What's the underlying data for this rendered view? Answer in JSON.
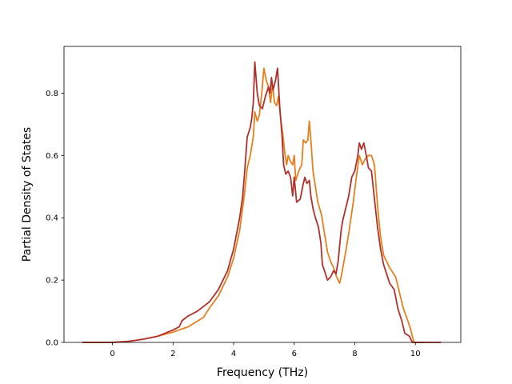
{
  "chart_data": {
    "type": "line",
    "xlabel": "Frequency (THz)",
    "ylabel": "Partial Density of States",
    "xlim": [
      -1.6,
      11.5
    ],
    "ylim": [
      0,
      0.95
    ],
    "xticks": [
      0,
      2,
      4,
      6,
      8,
      10
    ],
    "yticks": [
      0.0,
      0.2,
      0.4,
      0.6,
      0.8
    ],
    "x_tick_labels": [
      "0",
      "2",
      "4",
      "6",
      "8",
      "10"
    ],
    "y_tick_labels": [
      "0.0",
      "0.2",
      "0.4",
      "0.6",
      "0.8"
    ],
    "grid": false,
    "series": [
      {
        "color": "#e6801f",
        "points": [
          [
            -1.0,
            0
          ],
          [
            0.0,
            0
          ],
          [
            0.5,
            0.003
          ],
          [
            1.0,
            0.01
          ],
          [
            1.5,
            0.02
          ],
          [
            2.0,
            0.033
          ],
          [
            2.5,
            0.05
          ],
          [
            3.0,
            0.08
          ],
          [
            3.2,
            0.11
          ],
          [
            3.5,
            0.15
          ],
          [
            3.8,
            0.21
          ],
          [
            4.0,
            0.27
          ],
          [
            4.2,
            0.36
          ],
          [
            4.35,
            0.47
          ],
          [
            4.45,
            0.56
          ],
          [
            4.55,
            0.6
          ],
          [
            4.65,
            0.66
          ],
          [
            4.7,
            0.74
          ],
          [
            4.78,
            0.71
          ],
          [
            4.85,
            0.73
          ],
          [
            4.93,
            0.8
          ],
          [
            5.0,
            0.88
          ],
          [
            5.08,
            0.84
          ],
          [
            5.15,
            0.82
          ],
          [
            5.22,
            0.77
          ],
          [
            5.28,
            0.83
          ],
          [
            5.35,
            0.77
          ],
          [
            5.42,
            0.76
          ],
          [
            5.48,
            0.79
          ],
          [
            5.55,
            0.72
          ],
          [
            5.62,
            0.67
          ],
          [
            5.7,
            0.6
          ],
          [
            5.75,
            0.57
          ],
          [
            5.8,
            0.6
          ],
          [
            5.88,
            0.58
          ],
          [
            5.95,
            0.57
          ],
          [
            6.0,
            0.6
          ],
          [
            6.05,
            0.52
          ],
          [
            6.15,
            0.55
          ],
          [
            6.25,
            0.57
          ],
          [
            6.3,
            0.65
          ],
          [
            6.38,
            0.64
          ],
          [
            6.45,
            0.65
          ],
          [
            6.5,
            0.71
          ],
          [
            6.55,
            0.65
          ],
          [
            6.62,
            0.55
          ],
          [
            6.7,
            0.5
          ],
          [
            6.78,
            0.45
          ],
          [
            6.9,
            0.41
          ],
          [
            7.0,
            0.35
          ],
          [
            7.1,
            0.29
          ],
          [
            7.2,
            0.26
          ],
          [
            7.3,
            0.24
          ],
          [
            7.4,
            0.21
          ],
          [
            7.5,
            0.19
          ],
          [
            7.55,
            0.21
          ],
          [
            7.7,
            0.29
          ],
          [
            7.8,
            0.35
          ],
          [
            7.95,
            0.45
          ],
          [
            8.05,
            0.53
          ],
          [
            8.15,
            0.6
          ],
          [
            8.25,
            0.57
          ],
          [
            8.35,
            0.59
          ],
          [
            8.45,
            0.6
          ],
          [
            8.55,
            0.6
          ],
          [
            8.65,
            0.57
          ],
          [
            8.75,
            0.44
          ],
          [
            8.85,
            0.34
          ],
          [
            8.95,
            0.28
          ],
          [
            9.05,
            0.26
          ],
          [
            9.15,
            0.24
          ],
          [
            9.35,
            0.21
          ],
          [
            9.5,
            0.15
          ],
          [
            9.6,
            0.11
          ],
          [
            9.75,
            0.07
          ],
          [
            9.85,
            0.04
          ],
          [
            9.95,
            0
          ],
          [
            10.3,
            0
          ]
        ]
      },
      {
        "color": "#b2302b",
        "points": [
          [
            -1.0,
            0
          ],
          [
            0.0,
            0
          ],
          [
            0.5,
            0.003
          ],
          [
            1.0,
            0.01
          ],
          [
            1.5,
            0.02
          ],
          [
            2.0,
            0.04
          ],
          [
            2.2,
            0.05
          ],
          [
            2.3,
            0.07
          ],
          [
            2.5,
            0.085
          ],
          [
            2.8,
            0.1
          ],
          [
            3.0,
            0.115
          ],
          [
            3.2,
            0.13
          ],
          [
            3.5,
            0.17
          ],
          [
            3.8,
            0.23
          ],
          [
            4.0,
            0.3
          ],
          [
            4.2,
            0.4
          ],
          [
            4.3,
            0.47
          ],
          [
            4.35,
            0.53
          ],
          [
            4.45,
            0.66
          ],
          [
            4.55,
            0.69
          ],
          [
            4.6,
            0.72
          ],
          [
            4.65,
            0.77
          ],
          [
            4.7,
            0.9
          ],
          [
            4.78,
            0.8
          ],
          [
            4.85,
            0.76
          ],
          [
            4.95,
            0.75
          ],
          [
            5.05,
            0.79
          ],
          [
            5.15,
            0.82
          ],
          [
            5.2,
            0.8
          ],
          [
            5.25,
            0.85
          ],
          [
            5.3,
            0.81
          ],
          [
            5.38,
            0.84
          ],
          [
            5.45,
            0.88
          ],
          [
            5.52,
            0.76
          ],
          [
            5.6,
            0.66
          ],
          [
            5.65,
            0.57
          ],
          [
            5.72,
            0.54
          ],
          [
            5.8,
            0.55
          ],
          [
            5.88,
            0.53
          ],
          [
            5.95,
            0.47
          ],
          [
            6.0,
            0.53
          ],
          [
            6.08,
            0.45
          ],
          [
            6.2,
            0.46
          ],
          [
            6.28,
            0.5
          ],
          [
            6.35,
            0.53
          ],
          [
            6.42,
            0.51
          ],
          [
            6.5,
            0.52
          ],
          [
            6.55,
            0.47
          ],
          [
            6.62,
            0.43
          ],
          [
            6.7,
            0.4
          ],
          [
            6.8,
            0.37
          ],
          [
            6.88,
            0.32
          ],
          [
            6.93,
            0.25
          ],
          [
            7.0,
            0.23
          ],
          [
            7.1,
            0.2
          ],
          [
            7.2,
            0.21
          ],
          [
            7.3,
            0.23
          ],
          [
            7.38,
            0.22
          ],
          [
            7.45,
            0.26
          ],
          [
            7.55,
            0.36
          ],
          [
            7.6,
            0.39
          ],
          [
            7.7,
            0.43
          ],
          [
            7.8,
            0.47
          ],
          [
            7.9,
            0.53
          ],
          [
            8.0,
            0.55
          ],
          [
            8.1,
            0.6
          ],
          [
            8.15,
            0.64
          ],
          [
            8.22,
            0.62
          ],
          [
            8.3,
            0.64
          ],
          [
            8.38,
            0.6
          ],
          [
            8.45,
            0.56
          ],
          [
            8.55,
            0.55
          ],
          [
            8.65,
            0.46
          ],
          [
            8.75,
            0.37
          ],
          [
            8.85,
            0.3
          ],
          [
            8.95,
            0.25
          ],
          [
            9.05,
            0.22
          ],
          [
            9.15,
            0.19
          ],
          [
            9.3,
            0.17
          ],
          [
            9.42,
            0.11
          ],
          [
            9.55,
            0.07
          ],
          [
            9.65,
            0.03
          ],
          [
            9.8,
            0.02
          ],
          [
            9.9,
            0
          ],
          [
            10.85,
            0
          ]
        ]
      }
    ]
  }
}
